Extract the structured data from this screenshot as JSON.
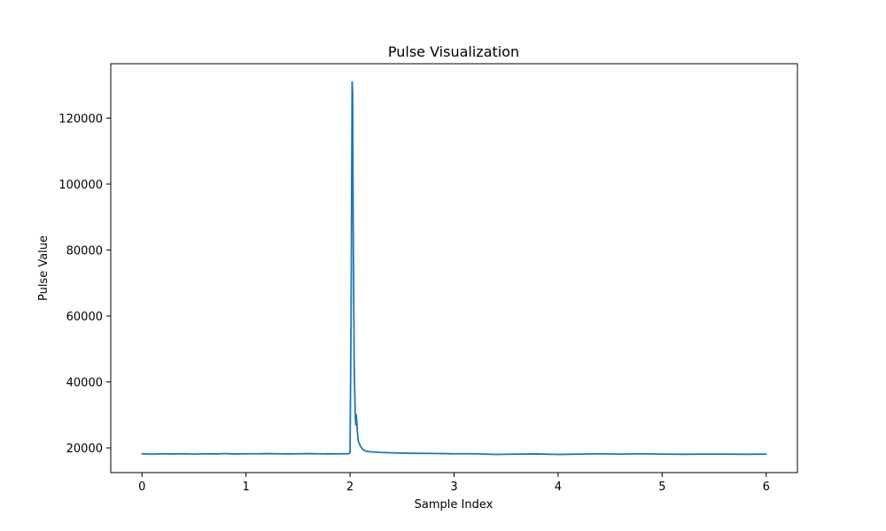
{
  "chart_data": {
    "type": "line",
    "title": "Pulse Visualization",
    "xlabel": "Sample Index",
    "ylabel": "Pulse Value",
    "xlim": [
      -0.3,
      6.3
    ],
    "ylim": [
      12500,
      136500
    ],
    "xticks": [
      0,
      1,
      2,
      3,
      4,
      5,
      6
    ],
    "yticks": [
      20000,
      40000,
      60000,
      80000,
      100000,
      120000
    ],
    "grid": false,
    "legend": "none",
    "colors": {
      "series": "#1f77b4"
    },
    "series": [
      {
        "x": [
          0,
          0.1,
          0.2,
          0.3,
          0.4,
          0.5,
          0.6,
          0.7,
          0.8,
          0.9,
          1.0,
          1.1,
          1.2,
          1.3,
          1.4,
          1.5,
          1.6,
          1.7,
          1.8,
          1.9,
          1.98,
          2.0,
          2.01,
          2.02,
          2.025,
          2.03,
          2.04,
          2.05,
          2.055,
          2.06,
          2.065,
          2.07,
          2.08,
          2.1,
          2.12,
          2.15,
          2.2,
          2.3,
          2.4,
          2.5,
          2.6,
          2.8,
          3.0,
          3.2,
          3.4,
          3.6,
          3.8,
          4.0,
          4.2,
          4.4,
          4.6,
          4.8,
          5.0,
          5.2,
          5.4,
          5.6,
          5.8,
          6.0
        ],
        "y": [
          18200,
          18100,
          18200,
          18150,
          18200,
          18100,
          18200,
          18150,
          18250,
          18150,
          18200,
          18200,
          18250,
          18200,
          18150,
          18200,
          18250,
          18200,
          18150,
          18200,
          18200,
          18500,
          60000,
          131000,
          128000,
          90000,
          45000,
          30000,
          27000,
          30000,
          28000,
          25000,
          22000,
          20500,
          19600,
          19000,
          18800,
          18600,
          18500,
          18400,
          18350,
          18300,
          18200,
          18200,
          18000,
          18100,
          18150,
          18000,
          18100,
          18200,
          18100,
          18200,
          18100,
          18050,
          18100,
          18100,
          18050,
          18100
        ]
      }
    ]
  }
}
